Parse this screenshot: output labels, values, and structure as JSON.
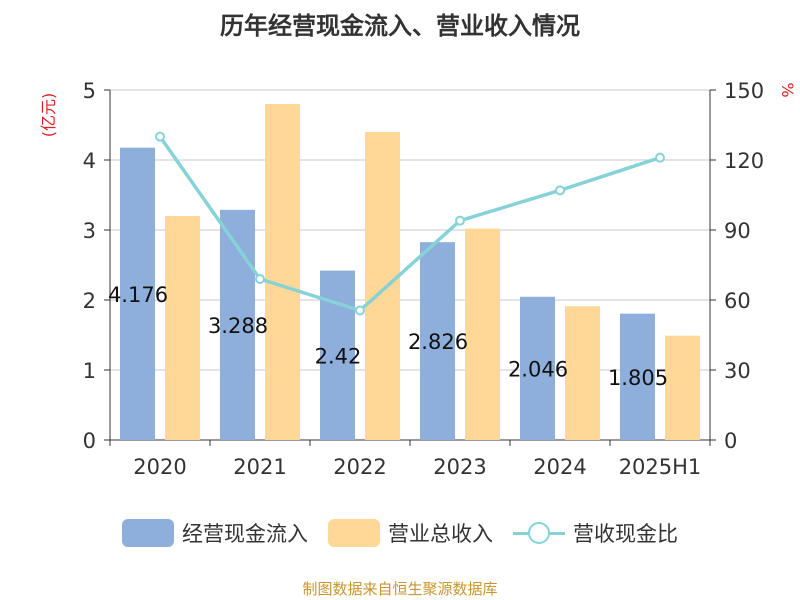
{
  "chart_data": {
    "type": "bar",
    "title": "历年经营现金流入、营业收入情况",
    "categories": [
      "2020",
      "2021",
      "2022",
      "2023",
      "2024",
      "2025H1"
    ],
    "series": [
      {
        "name": "经营现金流入",
        "type": "bar",
        "axis": "left",
        "color": "#8eaedb",
        "values": [
          4.176,
          3.288,
          2.42,
          2.826,
          2.046,
          1.805
        ],
        "labels": [
          "4.176",
          "3.288",
          "2.42",
          "2.826",
          "2.046",
          "1.805"
        ]
      },
      {
        "name": "营业总收入",
        "type": "bar",
        "axis": "left",
        "color": "#ffd797",
        "values": [
          3.2,
          4.8,
          4.4,
          3.02,
          1.91,
          1.49
        ]
      },
      {
        "name": "营收现金比",
        "type": "line",
        "axis": "right",
        "color": "#86d3d7",
        "values": [
          130,
          69,
          55.5,
          94,
          107,
          121
        ]
      }
    ],
    "ylabel": "(亿元)",
    "y2label": "%",
    "ylim": [
      0,
      5
    ],
    "y2lim": [
      0,
      150
    ],
    "yticks": [
      "0",
      "1",
      "2",
      "3",
      "4",
      "5"
    ],
    "y2ticks": [
      "0",
      "30",
      "60",
      "90",
      "120",
      "150"
    ],
    "grid": true,
    "legend_position": "bottom"
  },
  "source_text": "制图数据来自恒生聚源数据库"
}
